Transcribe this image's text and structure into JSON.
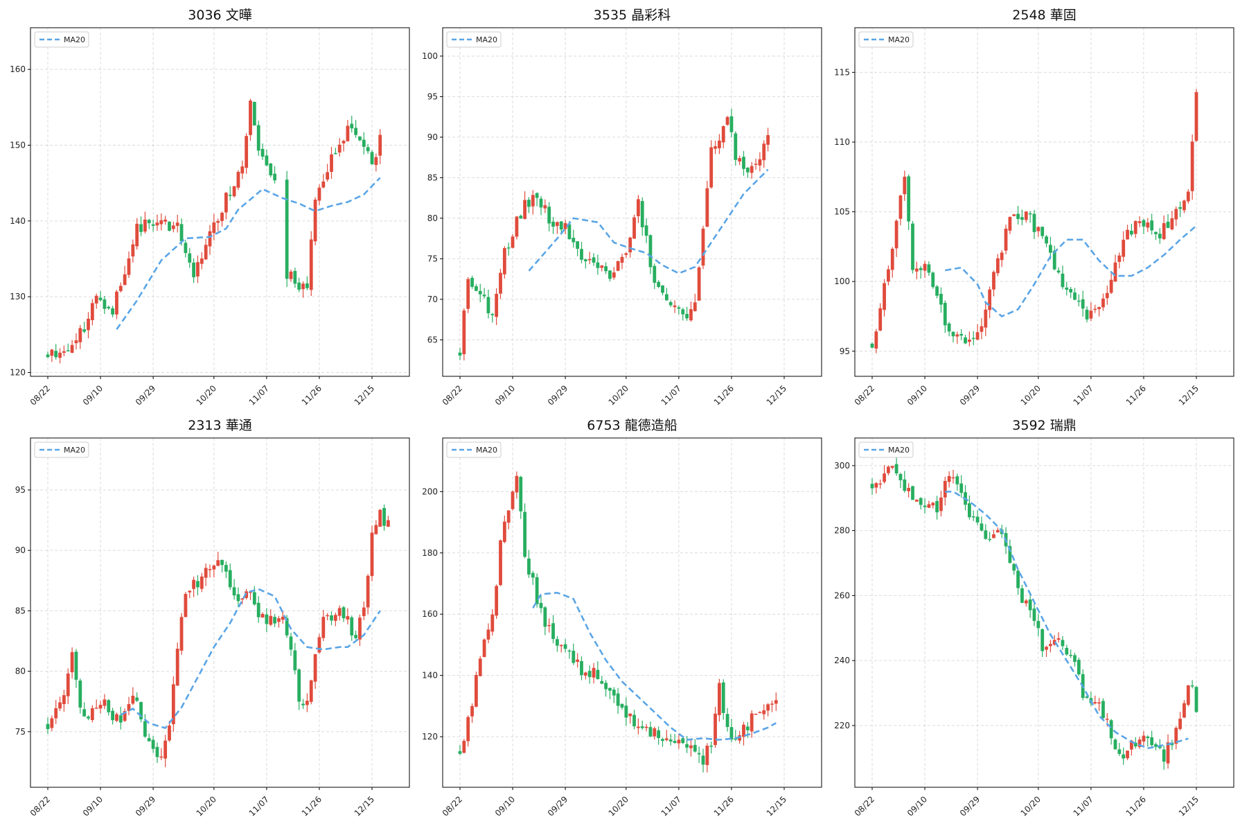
{
  "colors": {
    "up": "#e04b3c",
    "down": "#27ae60",
    "ma": "#5aa5e6"
  },
  "x_tick_labels": [
    "08/22",
    "09/10",
    "09/29",
    "10/20",
    "11/07",
    "11/26",
    "12/15"
  ],
  "chart_data": [
    {
      "type": "candlestick",
      "title": "3036 文曄",
      "legend": "MA20",
      "legend_position": "top-left",
      "grid": true,
      "ylim": [
        119.5,
        165.5
      ],
      "yticks": [
        120,
        130,
        140,
        150,
        160
      ],
      "anchors": [
        [
          0,
          122.5
        ],
        [
          4,
          123
        ],
        [
          8,
          125
        ],
        [
          12,
          130
        ],
        [
          16,
          128.5
        ],
        [
          22,
          139
        ],
        [
          28,
          140
        ],
        [
          32,
          139
        ],
        [
          36,
          133
        ],
        [
          40,
          138
        ],
        [
          44,
          143
        ],
        [
          48,
          147.5
        ],
        [
          50,
          155
        ],
        [
          52,
          149
        ],
        [
          56,
          145
        ],
        [
          58,
          134
        ],
        [
          62,
          131
        ],
        [
          64,
          132
        ],
        [
          66,
          142
        ],
        [
          70,
          148
        ],
        [
          74,
          152
        ],
        [
          78,
          150
        ],
        [
          80,
          147
        ],
        [
          82,
          151
        ]
      ],
      "ma_anchors": [
        [
          17,
          125.7
        ],
        [
          22,
          129.5
        ],
        [
          28,
          134.8
        ],
        [
          34,
          137.7
        ],
        [
          40,
          137.9
        ],
        [
          44,
          139
        ],
        [
          47,
          141.5
        ],
        [
          53,
          144.2
        ],
        [
          58,
          143
        ],
        [
          62,
          142.3
        ],
        [
          66,
          141.3
        ],
        [
          70,
          142
        ],
        [
          74,
          142.5
        ],
        [
          78,
          143.5
        ],
        [
          82,
          145.7
        ]
      ],
      "gaps": [
        [
          57,
          58
        ]
      ],
      "seed": 11
    },
    {
      "type": "candlestick",
      "title": "3535 晶彩科",
      "legend": "MA20",
      "legend_position": "top-left",
      "grid": true,
      "ylim": [
        60.5,
        103.5
      ],
      "yticks": [
        65,
        70,
        75,
        80,
        85,
        90,
        95,
        100
      ],
      "anchors": [
        [
          0,
          63.5
        ],
        [
          2,
          73
        ],
        [
          6,
          70
        ],
        [
          8,
          68
        ],
        [
          10,
          74
        ],
        [
          14,
          80
        ],
        [
          18,
          83
        ],
        [
          22,
          80
        ],
        [
          26,
          79
        ],
        [
          30,
          75
        ],
        [
          34,
          74
        ],
        [
          38,
          73
        ],
        [
          42,
          77
        ],
        [
          44,
          82
        ],
        [
          48,
          72
        ],
        [
          52,
          70
        ],
        [
          56,
          68
        ],
        [
          58,
          70
        ],
        [
          60,
          78
        ],
        [
          62,
          88
        ],
        [
          64,
          90
        ],
        [
          66,
          92
        ],
        [
          68,
          88
        ],
        [
          70,
          86
        ],
        [
          74,
          88
        ],
        [
          76,
          90
        ]
      ],
      "ma_anchors": [
        [
          17,
          73.5
        ],
        [
          24,
          77.5
        ],
        [
          28,
          80
        ],
        [
          34,
          79.5
        ],
        [
          38,
          77
        ],
        [
          42,
          76.3
        ],
        [
          46,
          75.7
        ],
        [
          50,
          74.2
        ],
        [
          54,
          73.2
        ],
        [
          58,
          74
        ],
        [
          62,
          77
        ],
        [
          66,
          80
        ],
        [
          70,
          83
        ],
        [
          74,
          85
        ],
        [
          76,
          86
        ]
      ],
      "gaps": [],
      "seed": 23
    },
    {
      "type": "candlestick",
      "title": "2548 華固",
      "legend": "MA20",
      "legend_position": "top-left",
      "grid": true,
      "ylim": [
        93.2,
        118.2
      ],
      "yticks": [
        95,
        100,
        105,
        110,
        115
      ],
      "anchors": [
        [
          0,
          95.5
        ],
        [
          4,
          101
        ],
        [
          8,
          108
        ],
        [
          10,
          101
        ],
        [
          14,
          101
        ],
        [
          18,
          97
        ],
        [
          22,
          96
        ],
        [
          26,
          96
        ],
        [
          28,
          98
        ],
        [
          30,
          100.5
        ],
        [
          34,
          104.5
        ],
        [
          38,
          105
        ],
        [
          42,
          103
        ],
        [
          46,
          100.5
        ],
        [
          50,
          98.5
        ],
        [
          54,
          97.5
        ],
        [
          58,
          99.5
        ],
        [
          62,
          103
        ],
        [
          66,
          104.5
        ],
        [
          70,
          103
        ],
        [
          74,
          104.5
        ],
        [
          78,
          106
        ],
        [
          80,
          114
        ]
      ],
      "ma_anchors": [
        [
          18,
          100.8
        ],
        [
          22,
          101
        ],
        [
          26,
          99.8
        ],
        [
          28,
          98.5
        ],
        [
          32,
          97.5
        ],
        [
          36,
          98
        ],
        [
          40,
          99.8
        ],
        [
          44,
          101.8
        ],
        [
          48,
          103
        ],
        [
          52,
          103
        ],
        [
          56,
          101.5
        ],
        [
          60,
          100.4
        ],
        [
          64,
          100.4
        ],
        [
          68,
          101
        ],
        [
          72,
          101.9
        ],
        [
          76,
          103
        ],
        [
          80,
          104
        ]
      ],
      "gaps": [],
      "seed": 37
    },
    {
      "type": "candlestick",
      "title": "2313 華通",
      "legend": "MA20",
      "legend_position": "top-left",
      "grid": true,
      "ylim": [
        70.4,
        99.3
      ],
      "yticks": [
        75,
        80,
        85,
        90,
        95
      ],
      "anchors": [
        [
          0,
          75.5
        ],
        [
          2,
          77
        ],
        [
          4,
          78
        ],
        [
          6,
          81
        ],
        [
          8,
          77
        ],
        [
          10,
          76
        ],
        [
          12,
          77
        ],
        [
          14,
          77.5
        ],
        [
          16,
          76.5
        ],
        [
          18,
          76
        ],
        [
          20,
          77
        ],
        [
          22,
          78
        ],
        [
          24,
          75
        ],
        [
          26,
          73
        ],
        [
          28,
          73
        ],
        [
          30,
          75
        ],
        [
          32,
          82
        ],
        [
          34,
          86
        ],
        [
          38,
          88
        ],
        [
          42,
          89
        ],
        [
          46,
          86.5
        ],
        [
          50,
          86
        ],
        [
          54,
          84
        ],
        [
          58,
          85
        ],
        [
          60,
          82
        ],
        [
          62,
          78
        ],
        [
          64,
          77
        ],
        [
          66,
          81
        ],
        [
          68,
          84
        ],
        [
          72,
          85
        ],
        [
          76,
          83
        ],
        [
          78,
          85
        ],
        [
          80,
          91
        ],
        [
          82,
          93
        ],
        [
          84,
          92
        ]
      ],
      "ma_anchors": [
        [
          18,
          76.4
        ],
        [
          21,
          76.9
        ],
        [
          25,
          75.7
        ],
        [
          29,
          75.3
        ],
        [
          33,
          77
        ],
        [
          37,
          79.5
        ],
        [
          41,
          82
        ],
        [
          45,
          84
        ],
        [
          49,
          86.5
        ],
        [
          52,
          86.8
        ],
        [
          56,
          86.2
        ],
        [
          60,
          83.5
        ],
        [
          64,
          82
        ],
        [
          68,
          81.8
        ],
        [
          72,
          82
        ],
        [
          74,
          82
        ],
        [
          78,
          83
        ],
        [
          81,
          84.5
        ],
        [
          82,
          85
        ]
      ],
      "gaps": [],
      "seed": 51
    },
    {
      "type": "candlestick",
      "title": "6753 龍德造船",
      "legend": "MA20",
      "legend_position": "top-left",
      "grid": true,
      "ylim": [
        103.5,
        217.5
      ],
      "yticks": [
        120,
        140,
        160,
        180,
        200
      ],
      "anchors": [
        [
          0,
          115.5
        ],
        [
          2,
          126
        ],
        [
          6,
          150
        ],
        [
          8,
          158
        ],
        [
          10,
          185
        ],
        [
          12,
          195
        ],
        [
          14,
          207
        ],
        [
          16,
          180
        ],
        [
          18,
          170
        ],
        [
          20,
          160
        ],
        [
          22,
          155
        ],
        [
          26,
          147
        ],
        [
          30,
          142
        ],
        [
          34,
          140
        ],
        [
          38,
          133
        ],
        [
          42,
          126
        ],
        [
          46,
          122
        ],
        [
          50,
          120
        ],
        [
          52,
          118
        ],
        [
          56,
          118
        ],
        [
          60,
          112
        ],
        [
          62,
          118
        ],
        [
          64,
          138
        ],
        [
          66,
          122
        ],
        [
          68,
          118
        ],
        [
          70,
          122
        ],
        [
          72,
          126
        ],
        [
          74,
          128
        ],
        [
          76,
          130
        ],
        [
          78,
          130
        ]
      ],
      "ma_anchors": [
        [
          18,
          162
        ],
        [
          20,
          166.5
        ],
        [
          24,
          167
        ],
        [
          28,
          165
        ],
        [
          32,
          154
        ],
        [
          36,
          145
        ],
        [
          40,
          138
        ],
        [
          44,
          133
        ],
        [
          48,
          128
        ],
        [
          52,
          123
        ],
        [
          56,
          119
        ],
        [
          60,
          119.5
        ],
        [
          64,
          119
        ],
        [
          68,
          119.5
        ],
        [
          72,
          121
        ],
        [
          76,
          123
        ],
        [
          78,
          124.5
        ]
      ],
      "gaps": [],
      "seed": 67
    },
    {
      "type": "candlestick",
      "title": "3592 瑞鼎",
      "legend": "MA20",
      "legend_position": "top-left",
      "grid": true,
      "ylim": [
        201,
        308.5
      ],
      "yticks": [
        220,
        240,
        260,
        280,
        300
      ],
      "anchors": [
        [
          0,
          294
        ],
        [
          2,
          293.5
        ],
        [
          4,
          300
        ],
        [
          8,
          293
        ],
        [
          12,
          290
        ],
        [
          16,
          286
        ],
        [
          18,
          295
        ],
        [
          20,
          298
        ],
        [
          24,
          285
        ],
        [
          28,
          278
        ],
        [
          30,
          280
        ],
        [
          32,
          277
        ],
        [
          36,
          262
        ],
        [
          40,
          252
        ],
        [
          42,
          245
        ],
        [
          44,
          244
        ],
        [
          46,
          248
        ],
        [
          48,
          242
        ],
        [
          50,
          240
        ],
        [
          52,
          230
        ],
        [
          56,
          228
        ],
        [
          58,
          220
        ],
        [
          60,
          214
        ],
        [
          62,
          210
        ],
        [
          64,
          214
        ],
        [
          68,
          216
        ],
        [
          70,
          213
        ],
        [
          72,
          211
        ],
        [
          74,
          216
        ],
        [
          76,
          220
        ],
        [
          78,
          234
        ],
        [
          80,
          226
        ]
      ],
      "ma_anchors": [
        [
          18,
          292
        ],
        [
          20,
          292
        ],
        [
          24,
          289
        ],
        [
          28,
          285
        ],
        [
          32,
          280
        ],
        [
          36,
          268
        ],
        [
          40,
          258
        ],
        [
          44,
          248
        ],
        [
          48,
          240
        ],
        [
          52,
          232
        ],
        [
          56,
          223
        ],
        [
          60,
          218
        ],
        [
          64,
          215
        ],
        [
          68,
          213
        ],
        [
          70,
          213.5
        ],
        [
          74,
          214.5
        ],
        [
          78,
          216
        ]
      ],
      "gaps": [],
      "seed": 83
    }
  ]
}
